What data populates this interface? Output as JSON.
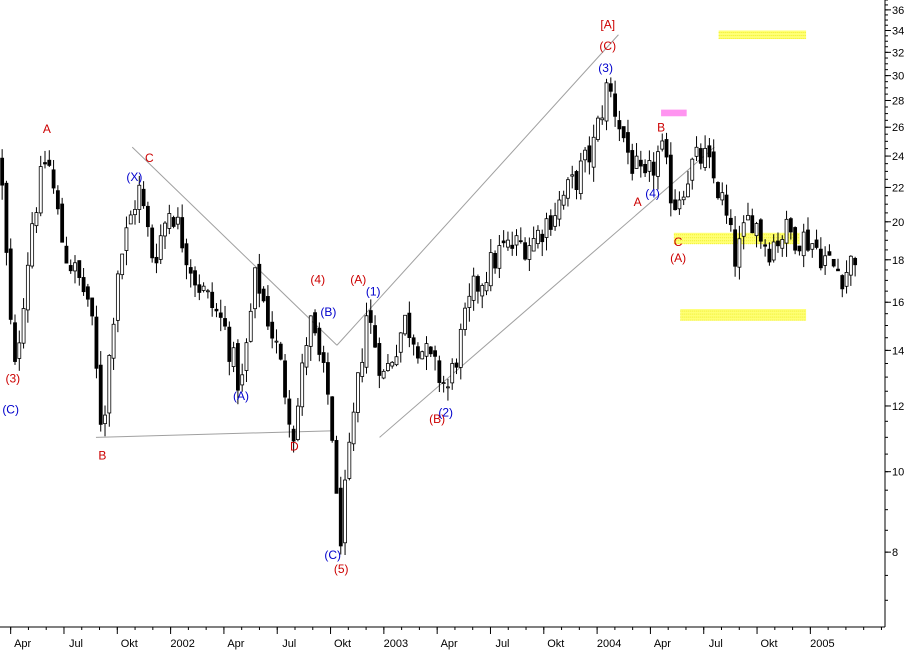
{
  "colors": {
    "red_label": "#cc0000",
    "blue_label": "#0000cc",
    "candle": "#000000",
    "trendline": "#a0a0a0",
    "yellow_zone": "#ffff66",
    "magenta_zone": "#ff88ee",
    "axis": "#000000"
  },
  "chart_data": {
    "type": "candlestick",
    "scale": "log",
    "ylim": [
      6.5,
      37
    ],
    "grid": false,
    "y_ticks": [
      8,
      10,
      12,
      14,
      16,
      18,
      20,
      22,
      24,
      26,
      28,
      30,
      32,
      34,
      36
    ],
    "x_ticks": [
      "Apr",
      "Jul",
      "Okt",
      "2002",
      "Apr",
      "Jul",
      "Okt",
      "2003",
      "Apr",
      "Jul",
      "Okt",
      "2004",
      "Apr",
      "Jul",
      "Okt",
      "2005"
    ],
    "x_range": [
      2001.2,
      2005.35
    ],
    "x_tick_positions": [
      2001.25,
      2001.5,
      2001.75,
      2002.0,
      2002.25,
      2002.5,
      2002.75,
      2003.0,
      2003.25,
      2003.5,
      2003.75,
      2004.0,
      2004.25,
      2004.5,
      2004.75,
      2005.0
    ],
    "price_path": [
      [
        2001.2,
        24.0
      ],
      [
        2001.25,
        15.0
      ],
      [
        2001.27,
        13.2
      ],
      [
        2001.35,
        20.0
      ],
      [
        2001.42,
        24.2
      ],
      [
        2001.5,
        18.5
      ],
      [
        2001.62,
        16.0
      ],
      [
        2001.68,
        11.1
      ],
      [
        2001.75,
        17.5
      ],
      [
        2001.85,
        22.0
      ],
      [
        2001.92,
        18.0
      ],
      [
        2002.0,
        21.0
      ],
      [
        2002.12,
        17.0
      ],
      [
        2002.25,
        15.0
      ],
      [
        2002.33,
        12.5
      ],
      [
        2002.4,
        17.3
      ],
      [
        2002.5,
        14.0
      ],
      [
        2002.58,
        11.1
      ],
      [
        2002.65,
        15.3
      ],
      [
        2002.75,
        12.0
      ],
      [
        2002.79,
        8.1
      ],
      [
        2002.84,
        10.5
      ],
      [
        2002.92,
        15.6
      ],
      [
        2003.0,
        13.0
      ],
      [
        2003.1,
        15.2
      ],
      [
        2003.22,
        13.5
      ],
      [
        2003.3,
        12.6
      ],
      [
        2003.42,
        16.5
      ],
      [
        2003.55,
        18.5
      ],
      [
        2003.7,
        19.0
      ],
      [
        2003.82,
        21.0
      ],
      [
        2003.9,
        22.5
      ],
      [
        2003.98,
        24.5
      ],
      [
        2004.05,
        29.3
      ],
      [
        2004.15,
        24.0
      ],
      [
        2004.22,
        22.0
      ],
      [
        2004.3,
        24.5
      ],
      [
        2004.36,
        21.0
      ],
      [
        2004.45,
        23.5
      ],
      [
        2004.5,
        24.0
      ],
      [
        2004.58,
        21.5
      ],
      [
        2004.65,
        18.0
      ],
      [
        2004.72,
        20.5
      ],
      [
        2004.8,
        18.6
      ],
      [
        2004.88,
        19.5
      ],
      [
        2005.0,
        19.0
      ],
      [
        2005.1,
        17.7
      ],
      [
        2005.16,
        17.3
      ],
      [
        2005.22,
        18.5
      ]
    ],
    "trendlines": [
      {
        "p1": [
          2001.65,
          11.0
        ],
        "p2": [
          2002.75,
          11.2
        ]
      },
      {
        "p1": [
          2001.82,
          24.6
        ],
        "p2": [
          2002.78,
          14.2
        ]
      },
      {
        "p1": [
          2002.78,
          14.2
        ],
        "p2": [
          2004.1,
          33.6
        ]
      },
      {
        "p1": [
          2002.98,
          11.0
        ],
        "p2": [
          2004.55,
          24.6
        ]
      }
    ],
    "zones": [
      {
        "color": "yellow",
        "x1": 2004.57,
        "x2": 2004.98,
        "y_top": 34.0,
        "y_bot": 33.2
      },
      {
        "color": "magenta",
        "x1": 2004.3,
        "x2": 2004.42,
        "y_top": 27.3,
        "y_bot": 26.8
      },
      {
        "color": "yellow",
        "x1": 2004.36,
        "x2": 2004.95,
        "y_top": 19.4,
        "y_bot": 18.8
      },
      {
        "color": "yellow",
        "x1": 2004.39,
        "x2": 2004.98,
        "y_top": 15.7,
        "y_bot": 15.2
      }
    ],
    "annotations": [
      {
        "text": "A",
        "color": "red",
        "x": 2001.42,
        "y": 25.6
      },
      {
        "text": "(3)",
        "color": "red",
        "x": 2001.26,
        "y": 12.8
      },
      {
        "text": "(C)",
        "color": "blue",
        "x": 2001.25,
        "y": 11.75
      },
      {
        "text": "B",
        "color": "red",
        "x": 2001.68,
        "y": 10.35
      },
      {
        "text": "C",
        "color": "red",
        "x": 2001.9,
        "y": 23.6
      },
      {
        "text": "(X)",
        "color": "blue",
        "x": 2001.83,
        "y": 22.4
      },
      {
        "text": "(A)",
        "color": "blue",
        "x": 2002.33,
        "y": 12.2
      },
      {
        "text": "D",
        "color": "red",
        "x": 2002.58,
        "y": 10.6
      },
      {
        "text": "(4)",
        "color": "red",
        "x": 2002.69,
        "y": 16.85
      },
      {
        "text": "(B)",
        "color": "blue",
        "x": 2002.74,
        "y": 15.4
      },
      {
        "text": "(C)",
        "color": "blue",
        "x": 2002.76,
        "y": 7.85
      },
      {
        "text": "(5)",
        "color": "red",
        "x": 2002.8,
        "y": 7.55
      },
      {
        "text": "(A)",
        "color": "red",
        "x": 2002.88,
        "y": 16.85
      },
      {
        "text": "(1)",
        "color": "blue",
        "x": 2002.95,
        "y": 16.3
      },
      {
        "text": "(B)",
        "color": "red",
        "x": 2003.25,
        "y": 11.45
      },
      {
        "text": "(2)",
        "color": "blue",
        "x": 2003.29,
        "y": 11.65
      },
      {
        "text": "[A]",
        "color": "red",
        "x": 2004.05,
        "y": 34.2
      },
      {
        "text": "(C)",
        "color": "red",
        "x": 2004.05,
        "y": 32.2
      },
      {
        "text": "(3)",
        "color": "blue",
        "x": 2004.04,
        "y": 30.3
      },
      {
        "text": "B",
        "color": "red",
        "x": 2004.3,
        "y": 25.7
      },
      {
        "text": "(4)",
        "color": "blue",
        "x": 2004.26,
        "y": 21.4
      },
      {
        "text": "A",
        "color": "red",
        "x": 2004.19,
        "y": 20.9
      },
      {
        "text": "C",
        "color": "red",
        "x": 2004.38,
        "y": 18.7
      },
      {
        "text": "(A)",
        "color": "red",
        "x": 2004.38,
        "y": 17.9
      }
    ]
  }
}
